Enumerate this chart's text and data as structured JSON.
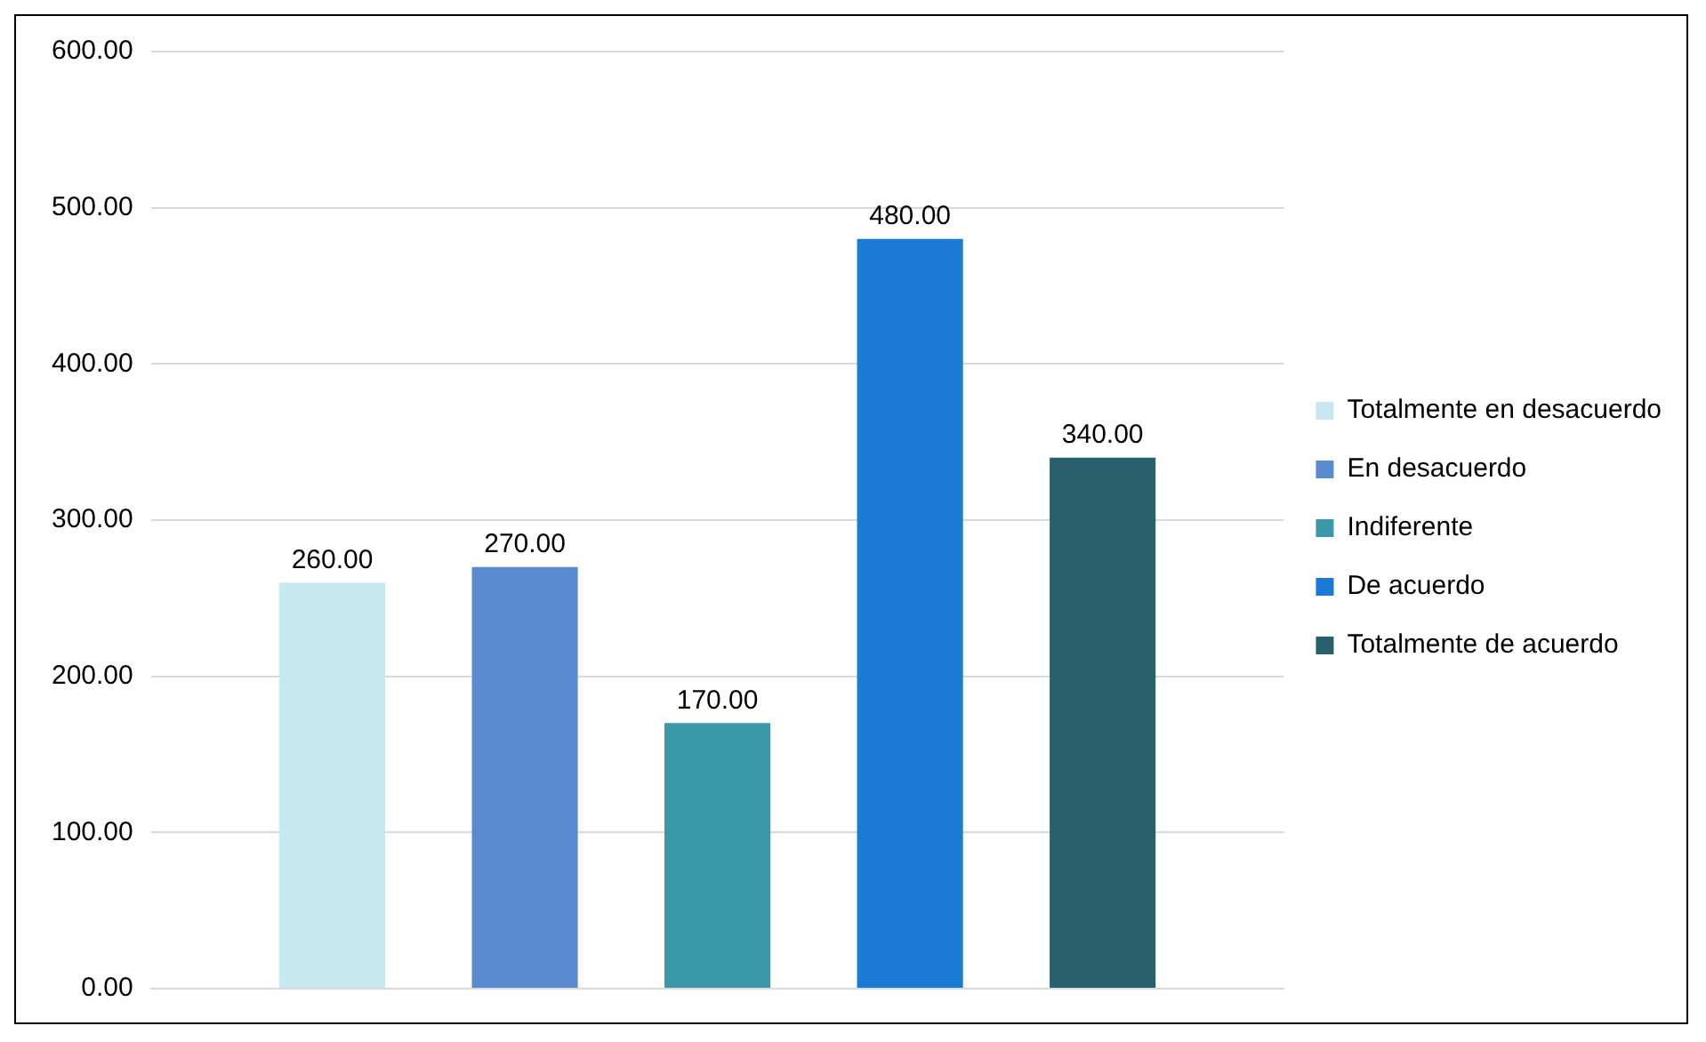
{
  "chart_data": {
    "type": "bar",
    "categories": [
      null
    ],
    "series": [
      {
        "name": "Totalmente en desacuerdo",
        "color": "#c8e8f0",
        "values": [
          260
        ],
        "value_labels": [
          "260.00"
        ]
      },
      {
        "name": "En desacuerdo",
        "color": "#5a8ad0",
        "values": [
          270
        ],
        "value_labels": [
          "270.00"
        ]
      },
      {
        "name": "Indiferente",
        "color": "#3a98a8",
        "values": [
          170
        ],
        "value_labels": [
          "170.00"
        ]
      },
      {
        "name": "De acuerdo",
        "color": "#1a7ad4",
        "values": [
          480
        ],
        "value_labels": [
          "480.00"
        ]
      },
      {
        "name": "Totalmente de acuerdo",
        "color": "#2a5f6c",
        "values": [
          340
        ],
        "value_labels": [
          "340.00"
        ]
      }
    ],
    "ylim": [
      0,
      600
    ],
    "yticks": [
      {
        "value": 0,
        "label": "0.00"
      },
      {
        "value": 100,
        "label": "100.00"
      },
      {
        "value": 200,
        "label": "200.00"
      },
      {
        "value": 300,
        "label": "300.00"
      },
      {
        "value": 400,
        "label": "400.00"
      },
      {
        "value": 500,
        "label": "500.00"
      },
      {
        "value": 600,
        "label": "600.00"
      }
    ],
    "grid": "y",
    "legend": "right"
  }
}
